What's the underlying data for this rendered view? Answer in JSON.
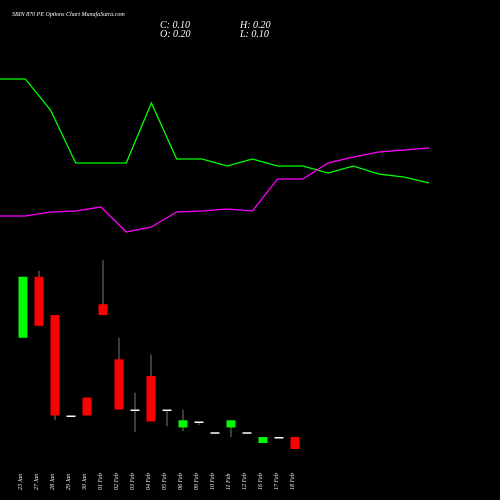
{
  "header": {
    "title": "SBIN 870 PE Options Chart MunafaSutra.com",
    "close": "C: 0.10",
    "open": "O: 0.20",
    "high": "H: 0.20",
    "low": "L: 0.10"
  },
  "chart_data": {
    "type": "candlestick",
    "categories": [
      "23 Jan",
      "27 Jan",
      "28 Jan",
      "29 Jan",
      "30 Jan",
      "01 Feb",
      "02 Feb",
      "03 Feb",
      "04 Feb",
      "05 Feb",
      "06 Feb",
      "09 Feb",
      "10 Feb",
      "11 Feb",
      "12 Feb",
      "16 Feb",
      "17 Feb",
      "18 Feb"
    ],
    "open": [
      1.03,
      1.54,
      1.22,
      0.38,
      0.53,
      1.31,
      0.85,
      0.43,
      0.71,
      0.43,
      0.28,
      0.33,
      0.24,
      0.28,
      0.24,
      0.15,
      0.2,
      0.2
    ],
    "high": [
      1.54,
      1.59,
      1.22,
      0.38,
      0.53,
      1.68,
      1.03,
      0.57,
      0.89,
      0.43,
      0.43,
      0.33,
      0.24,
      0.34,
      0.24,
      0.2,
      0.2,
      0.2
    ],
    "low": [
      1.03,
      1.13,
      0.34,
      0.38,
      0.38,
      1.22,
      0.43,
      0.24,
      0.33,
      0.29,
      0.25,
      0.3,
      0.24,
      0.2,
      0.24,
      0.15,
      0.2,
      0.1
    ],
    "close": [
      1.54,
      1.13,
      0.38,
      0.38,
      0.38,
      1.22,
      0.43,
      0.43,
      0.33,
      0.43,
      0.34,
      0.33,
      0.24,
      0.34,
      0.24,
      0.2,
      0.2,
      0.1
    ],
    "up_color": "#00ff00",
    "down_color": "#ff0000",
    "flat_color": "#ffffff",
    "lines": [
      {
        "color": "#00ff00",
        "values": [
          1.71,
          1.71,
          1.4,
          0.87,
          0.87,
          0.87,
          1.47,
          0.91,
          0.91,
          0.84,
          0.91,
          0.84,
          0.84,
          0.77,
          0.84,
          0.76,
          0.73,
          0.67
        ]
      },
      {
        "color": "#ff00ff",
        "values": [
          0.34,
          0.34,
          0.38,
          0.39,
          0.43,
          0.18,
          0.23,
          0.38,
          0.39,
          0.41,
          0.39,
          0.71,
          0.71,
          0.87,
          0.93,
          0.98,
          1.0,
          1.02
        ]
      }
    ]
  }
}
